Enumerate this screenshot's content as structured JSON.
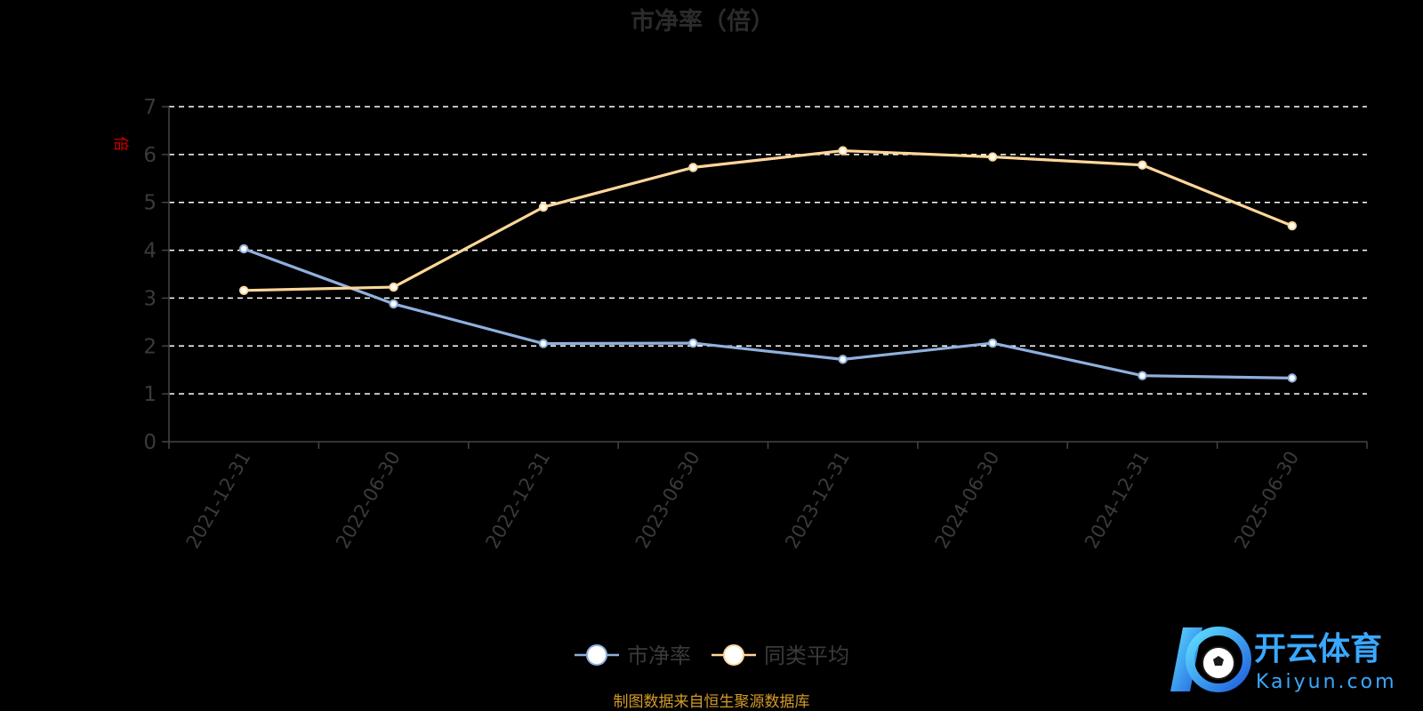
{
  "colors": {
    "series_pb": "#8fb0dd",
    "series_avg": "#ffd79a",
    "grid": "#ffffff",
    "axis": "#444444"
  },
  "chart_data": {
    "type": "line",
    "title": "市净率（倍）",
    "ylabel": "倍",
    "ylim": [
      0,
      7
    ],
    "yticks": [
      "0",
      "1",
      "2",
      "3",
      "4",
      "5",
      "6",
      "7"
    ],
    "categories": [
      "2021-12-31",
      "2022-06-30",
      "2022-12-31",
      "2023-06-30",
      "2023-12-31",
      "2024-06-30",
      "2024-12-31",
      "2025-06-30"
    ],
    "grid": true,
    "legend_position": "bottom-center",
    "series": [
      {
        "name": "市净率",
        "values": [
          4.03,
          2.88,
          2.05,
          2.06,
          1.72,
          2.06,
          1.38,
          1.33
        ]
      },
      {
        "name": "同类平均",
        "values": [
          3.16,
          3.23,
          4.9,
          5.73,
          6.08,
          5.95,
          5.78,
          4.51
        ]
      }
    ]
  },
  "source_note": "制图数据来自恒生聚源数据库",
  "logo": {
    "name": "开云体育",
    "url_text": "Kaiyun.com"
  }
}
